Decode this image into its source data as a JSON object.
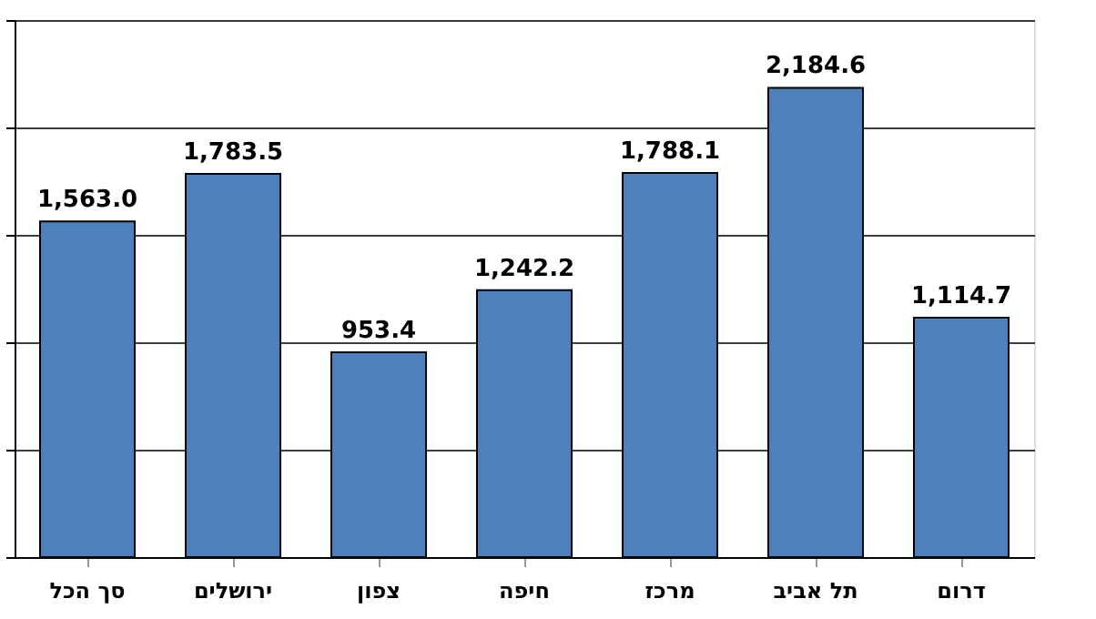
{
  "chart_data": {
    "type": "bar",
    "categories": [
      "סך הכל",
      "ירושלים",
      "צפון",
      "חיפה",
      "מרכז",
      "תל אביב",
      "דרום"
    ],
    "series": [
      {
        "color": "#4f81bd",
        "values": [
          1563.0,
          1783.5,
          953.4,
          1242.2,
          1788.1,
          2184.6,
          1114.7
        ],
        "value_labels": [
          "1,563.0",
          "1,783.5",
          "953.4",
          "1,242.2",
          "1,788.1",
          "2,184.6",
          "1,114.7"
        ]
      }
    ],
    "ylim": [
      0,
      2500
    ],
    "yticks": [
      {
        "value": 0,
        "label": null
      },
      {
        "value": 500,
        "label": null
      },
      {
        "value": 1000,
        "label": null
      },
      {
        "value": 1500,
        "label": null
      },
      {
        "value": 2000,
        "label": null
      },
      {
        "value": 2500,
        "label": null
      }
    ],
    "tick_labels": "x",
    "grid": "y"
  }
}
